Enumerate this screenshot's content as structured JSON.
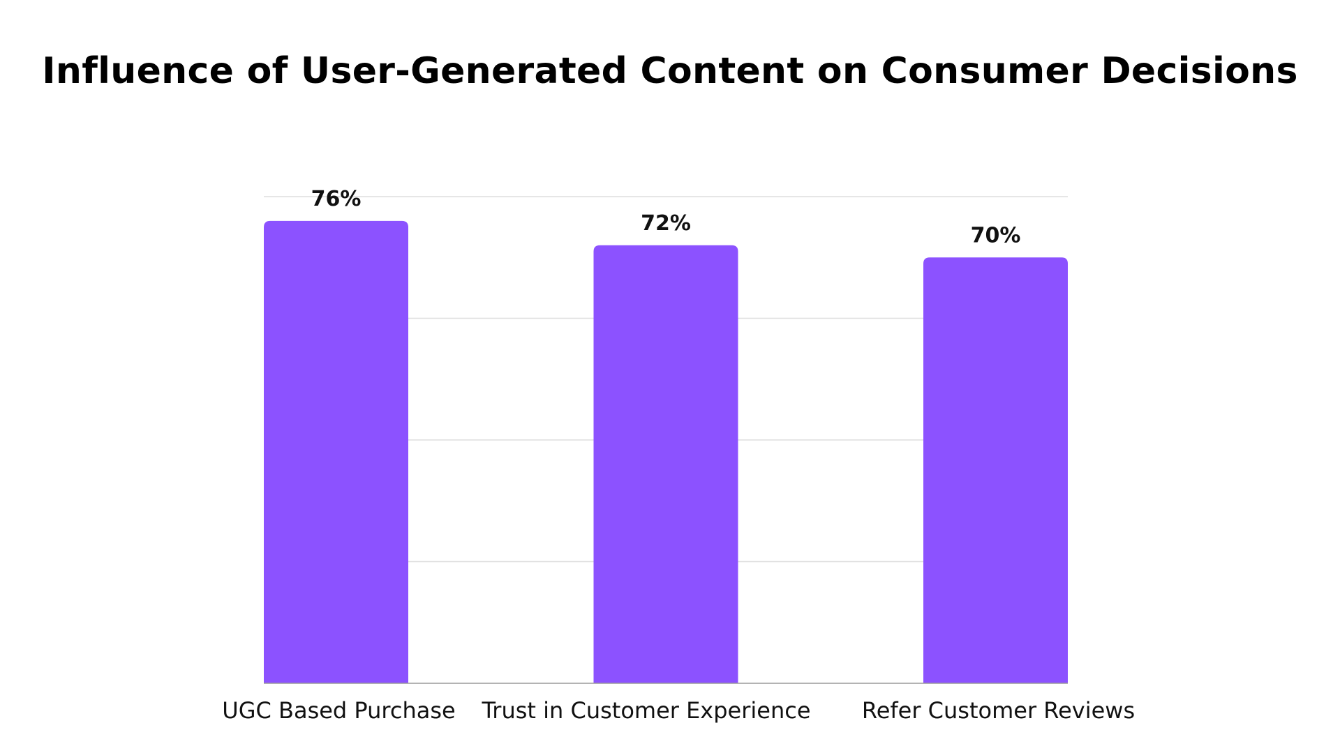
{
  "title": "Influence of User-Generated Content on Consumer Decisions",
  "colors": {
    "bar": "#8c52ff",
    "grid": "#dedede",
    "axis": "#9a9a9a",
    "text": "#111111",
    "background": "#ffffff"
  },
  "chart_data": {
    "type": "bar",
    "title": "Influence of User-Generated Content on Consumer Decisions",
    "xlabel": "",
    "ylabel": "",
    "categories": [
      "UGC Based Purchase",
      "Trust in Customer Experience",
      "Refer Customer Reviews"
    ],
    "values": [
      76,
      72,
      70
    ],
    "value_labels": [
      "76%",
      "72%",
      "70%"
    ],
    "ylim": [
      0,
      80
    ],
    "grid": true,
    "y_tick_labels_visible": false,
    "legend": "none"
  }
}
